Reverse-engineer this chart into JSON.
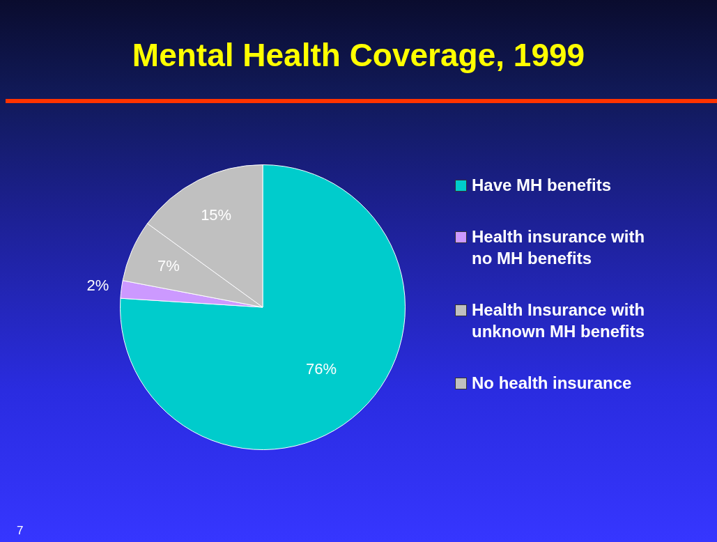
{
  "chart_data": {
    "type": "pie",
    "title": "Mental Health Coverage, 1999",
    "categories": [
      "Have MH benefits",
      "Health insurance with no MH benefits",
      "Health Insurance with unknown MH benefits",
      "No health insurance"
    ],
    "values": [
      76,
      2,
      7,
      15
    ],
    "colors": [
      "#00cccc",
      "#cc99ff",
      "#c0c0c0",
      "#c0c0c0"
    ],
    "value_labels": [
      "76%",
      "2%",
      "7%",
      "15%"
    ],
    "legend": "right",
    "annotations": [
      "7"
    ]
  }
}
